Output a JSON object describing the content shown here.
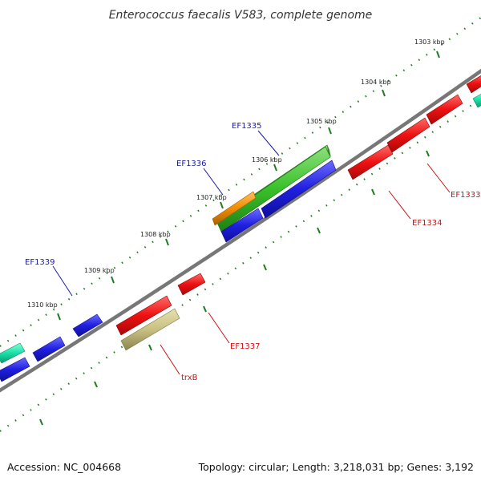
{
  "title": "Enterococcus faecalis V583, complete genome",
  "accession_text": "Accession: NC_004668",
  "summary_text": "Topology: circular; Length: 3,218,031 bp; Genes: 3,192",
  "colors": {
    "backbone": "#777777",
    "tick": "#1e7a1e",
    "forward_label": "#1a1aa8",
    "reverse_label": "#cc1111",
    "blue": "#1f1fe0",
    "red": "#ee1111",
    "green": "#39c02a",
    "orange": "#f08c00",
    "teal": "#19e0a8",
    "khaki": "#c9c081"
  },
  "scale_ticks": [
    "1303 kbp",
    "1304 kbp",
    "1305 kbp",
    "1306 kbp",
    "1307 kbp",
    "1308 kbp",
    "1309 kbp",
    "1310 kbp"
  ],
  "gene_labels": {
    "ef1335": "EF1335",
    "ef1336": "EF1336",
    "ef1339": "EF1339",
    "ef1333": "EF1333",
    "ef1334": "EF1334",
    "ef1337": "EF1337",
    "trxb": "trxB"
  }
}
